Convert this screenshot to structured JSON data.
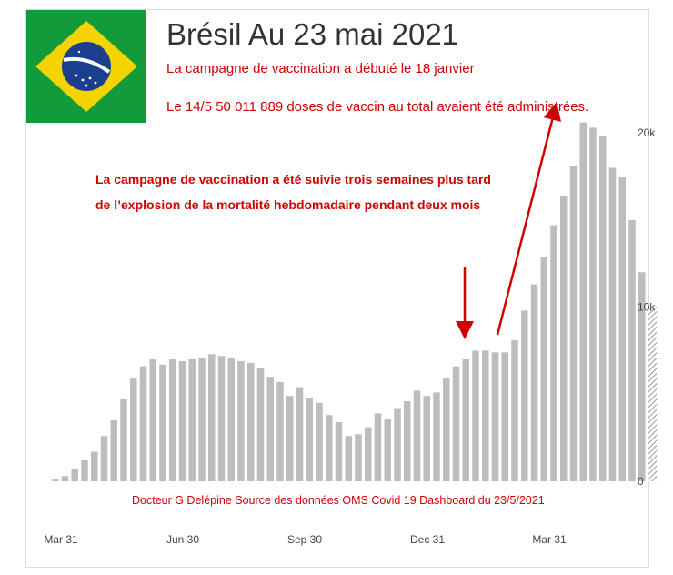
{
  "header": {
    "title": "Brésil Au 23 mai 2021",
    "subtitle_line1": "La campagne de vaccination a débuté le 18 janvier",
    "subtitle_line2": "Le  14/5 50 011 889 doses de vaccin au total avaient été administrées."
  },
  "annotation": {
    "line1": "La campagne de vaccination a été suivie trois semaines plus tard",
    "line2": "de l’explosion de la mortalité hebdomadaire  pendant deux mois"
  },
  "footer": {
    "credit": "Docteur G Delépine  Source des données OMS Covid 19 Dashboard du 23/5/2021"
  },
  "colors": {
    "bar": "#bdbdbd",
    "annotation": "#d00000",
    "flag_green": "#139a3a",
    "flag_yellow": "#f5d300",
    "flag_blue": "#1b3f8f"
  },
  "chart_data": {
    "type": "bar",
    "x_tick_labels": [
      "Mar 31",
      "Jun 30",
      "Sep 30",
      "Dec 31",
      "Mar 31"
    ],
    "y_tick_labels": [
      "0",
      "10k",
      "20k"
    ],
    "ylim": [
      0,
      21000
    ],
    "values": [
      100,
      300,
      700,
      1200,
      1700,
      2600,
      3500,
      4700,
      5900,
      6600,
      7000,
      6700,
      7000,
      6900,
      7000,
      7100,
      7300,
      7200,
      7100,
      6900,
      6800,
      6500,
      6000,
      5700,
      4900,
      5400,
      4800,
      4500,
      3800,
      3400,
      2600,
      2700,
      3100,
      3900,
      3600,
      4200,
      4600,
      5200,
      4900,
      5100,
      5900,
      6600,
      7000,
      7500,
      7500,
      7400,
      7400,
      8100,
      9800,
      11300,
      12900,
      14700,
      16400,
      18100,
      20600,
      20300,
      19800,
      18000,
      17500,
      15000,
      12000
    ],
    "hatched_last_value": 10000,
    "arrows": [
      {
        "direction": "down",
        "near": "Dec 31"
      },
      {
        "direction": "up",
        "near": "Mar 31"
      }
    ]
  }
}
